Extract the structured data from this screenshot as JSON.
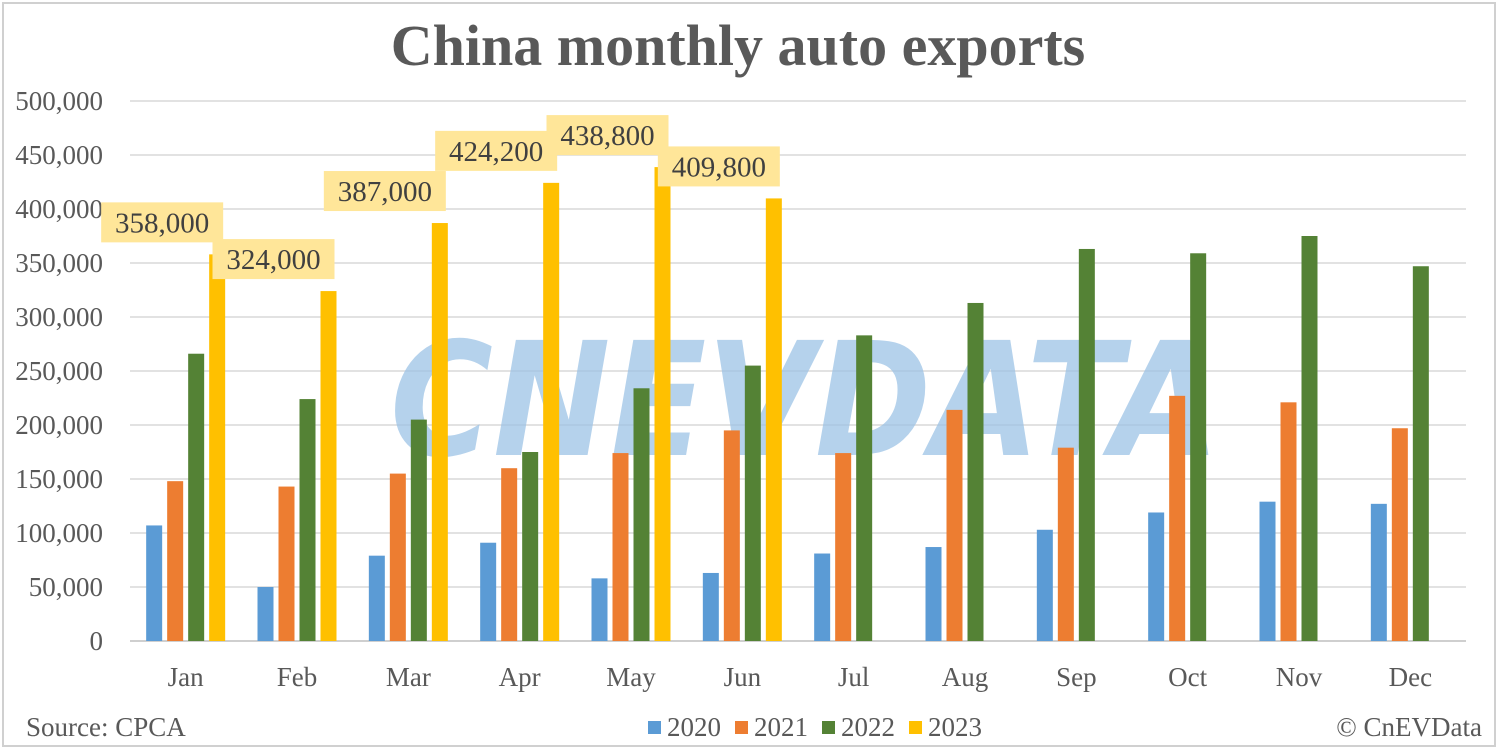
{
  "chart_data": {
    "type": "bar",
    "title": "China monthly auto exports",
    "categories": [
      "Jan",
      "Feb",
      "Mar",
      "Apr",
      "May",
      "Jun",
      "Jul",
      "Aug",
      "Sep",
      "Oct",
      "Nov",
      "Dec"
    ],
    "series": [
      {
        "name": "2020",
        "color": "#5b9bd5",
        "values": [
          107000,
          50000,
          79000,
          91000,
          58000,
          63000,
          81000,
          87000,
          103000,
          119000,
          129000,
          127000
        ]
      },
      {
        "name": "2021",
        "color": "#ed7d31",
        "values": [
          148000,
          143000,
          155000,
          160000,
          174000,
          195000,
          174000,
          214000,
          179000,
          227000,
          221000,
          197000
        ]
      },
      {
        "name": "2022",
        "color": "#548235",
        "values": [
          266000,
          224000,
          205000,
          175000,
          234000,
          255000,
          283000,
          313000,
          363000,
          359000,
          375000,
          347000
        ]
      },
      {
        "name": "2023",
        "color": "#ffc000",
        "values": [
          358000,
          324000,
          387000,
          424200,
          438800,
          409800,
          null,
          null,
          null,
          null,
          null,
          null
        ],
        "data_labels": [
          "358,000",
          "324,000",
          "387,000",
          "424,200",
          "438,800",
          "409,800"
        ]
      }
    ],
    "ylim": [
      0,
      500000
    ],
    "yticks": [
      0,
      50000,
      100000,
      150000,
      200000,
      250000,
      300000,
      350000,
      400000,
      450000,
      500000
    ],
    "ytick_labels": [
      "0",
      "50,000",
      "100,000",
      "150,000",
      "200,000",
      "250,000",
      "300,000",
      "350,000",
      "400,000",
      "450,000",
      "500,000"
    ],
    "grid": true,
    "legend_position": "bottom",
    "data_label_bg": "#ffe699"
  },
  "footer": {
    "source": "Source: CPCA",
    "credit": "© CnEVData"
  },
  "watermark": {
    "text": "CNEVDATA",
    "color": "#9dc3e6"
  }
}
